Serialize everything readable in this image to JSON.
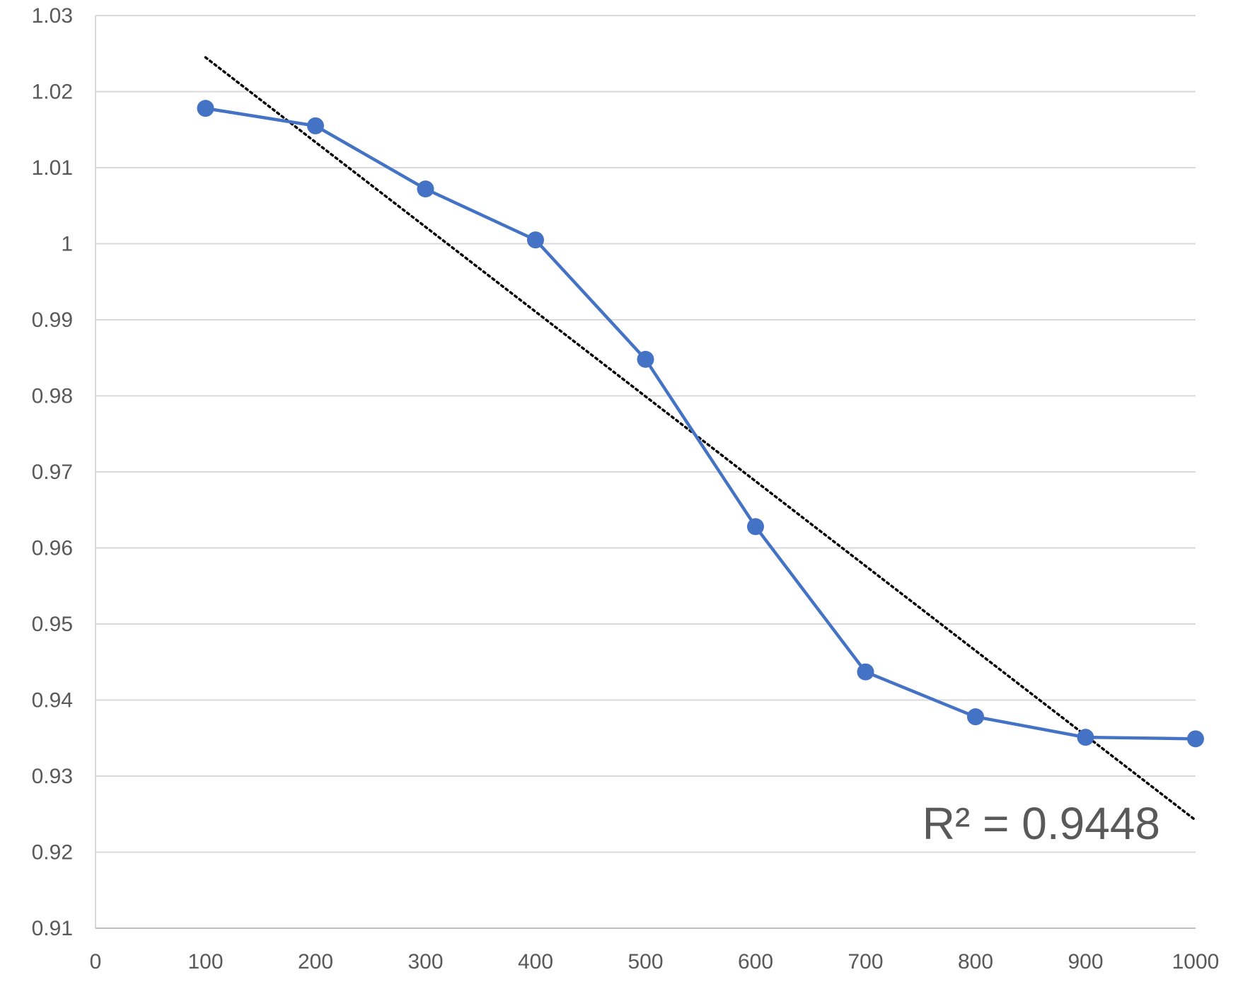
{
  "chart_data": {
    "type": "scatter",
    "title": "",
    "xlabel": "",
    "ylabel": "",
    "xlim": [
      0,
      1000
    ],
    "ylim": [
      0.91,
      1.03
    ],
    "xticks": [
      0,
      100,
      200,
      300,
      400,
      500,
      600,
      700,
      800,
      900,
      1000
    ],
    "xtick_labels": [
      "0",
      "100",
      "200",
      "300",
      "400",
      "500",
      "600",
      "700",
      "800",
      "900",
      "1000"
    ],
    "yticks": [
      0.91,
      0.92,
      0.93,
      0.94,
      0.95,
      0.96,
      0.97,
      0.98,
      0.99,
      1.0,
      1.01,
      1.02,
      1.03
    ],
    "ytick_labels": [
      "0.91",
      "0.92",
      "0.93",
      "0.94",
      "0.95",
      "0.96",
      "0.97",
      "0.98",
      "0.99",
      "1",
      "1.01",
      "1.02",
      "1.03"
    ],
    "grid": true,
    "series": [
      {
        "color": "#4472C4",
        "marker": "circle",
        "connected": true,
        "x": [
          100,
          200,
          300,
          400,
          500,
          600,
          700,
          800,
          900,
          1000
        ],
        "y": [
          1.0178,
          1.0155,
          1.0072,
          1.0005,
          0.9848,
          0.9628,
          0.9437,
          0.9378,
          0.9351,
          0.9349
        ]
      }
    ],
    "trendline": {
      "type": "linear",
      "style": "dotted",
      "color": "#000000",
      "x": [
        100,
        1000
      ],
      "y": [
        1.0245,
        0.9242
      ]
    },
    "annotations": [
      {
        "text": "R² = 0.9448",
        "position": "bottom-right"
      }
    ]
  }
}
